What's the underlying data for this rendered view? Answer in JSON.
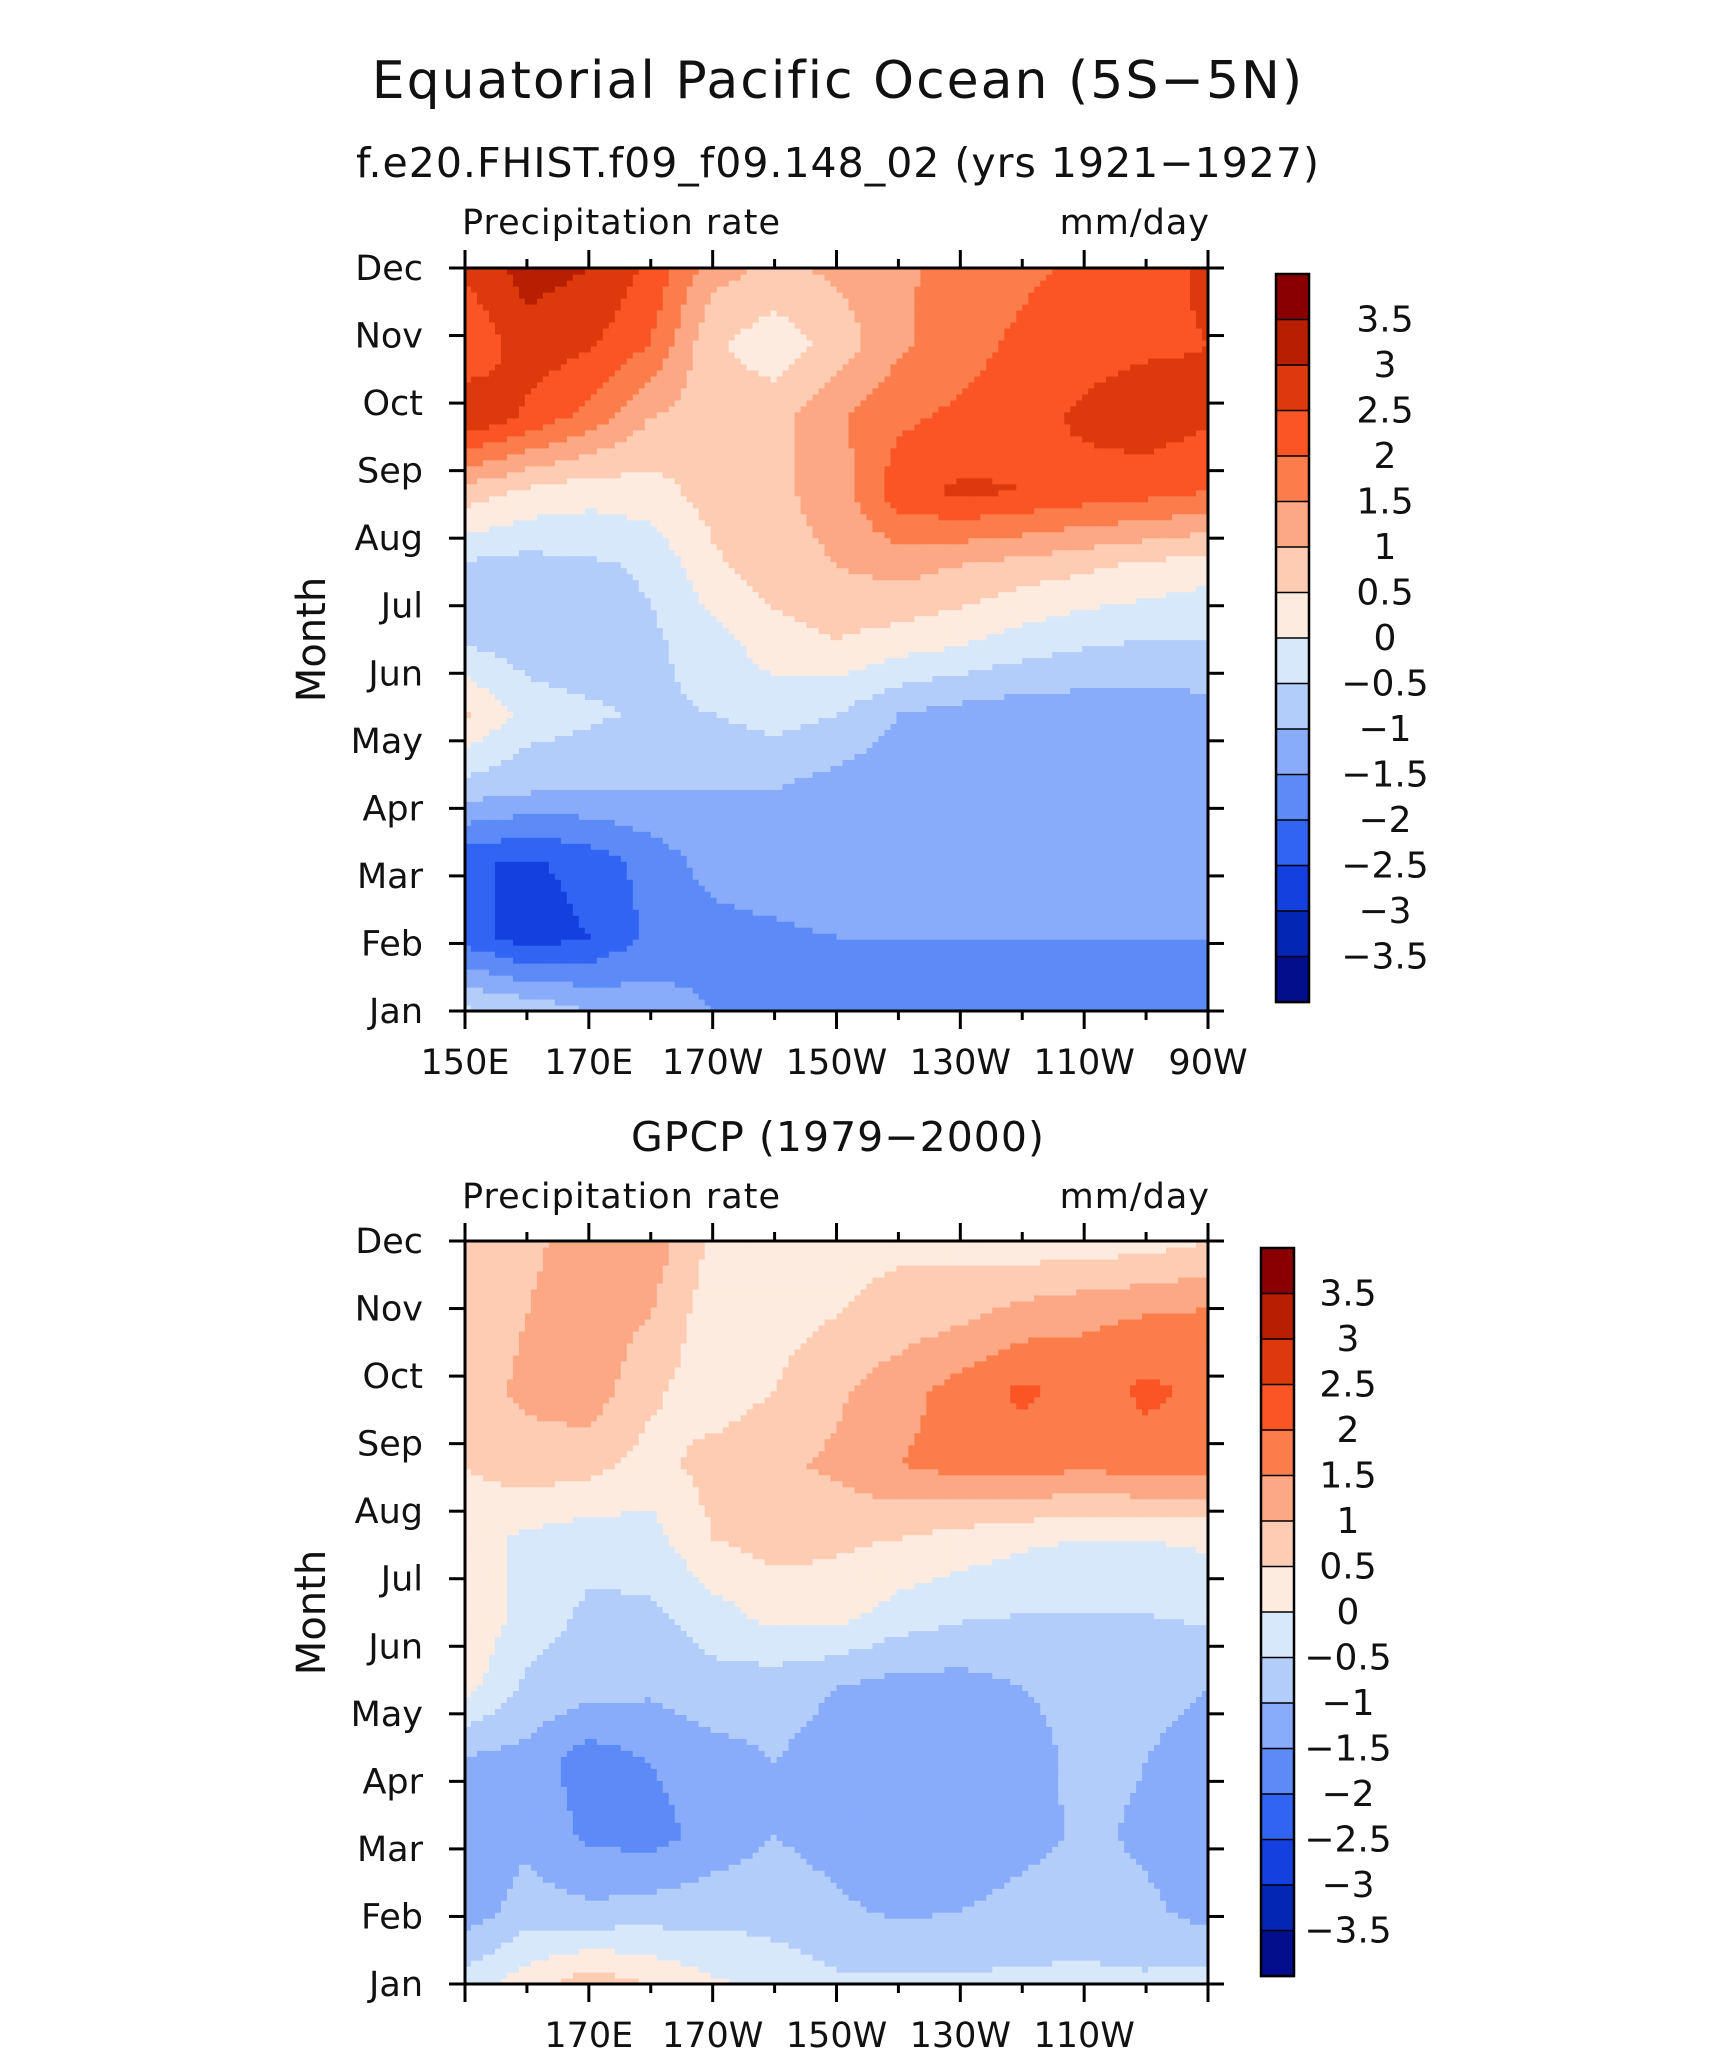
{
  "figure": {
    "title": "Equatorial Pacific Ocean (5S−5N)"
  },
  "chart_data": [
    {
      "type": "heatmap",
      "title": "f.e20.FHIST.f09_f09.148_02 (yrs 1921−1927)",
      "left_string": "Precipitation rate",
      "right_string": "mm/day",
      "ylabel": "Month",
      "xlabel": "",
      "x_ticks": [
        "150E",
        "170E",
        "170W",
        "150W",
        "130W",
        "110W",
        "90W"
      ],
      "y_ticks": [
        "Jan",
        "Feb",
        "Mar",
        "Apr",
        "May",
        "Jun",
        "Jul",
        "Aug",
        "Sep",
        "Oct",
        "Nov",
        "Dec"
      ],
      "xlim": [
        150,
        270
      ],
      "ylim": [
        "Jan",
        "Dec"
      ],
      "colorbar": {
        "labels": [
          "3.5",
          "3",
          "2.5",
          "2",
          "1.5",
          "1",
          "0.5",
          "0",
          "−0.5",
          "−1",
          "−1.5",
          "−2",
          "−2.5",
          "−3",
          "−3.5"
        ],
        "colors": [
          "#8a0000",
          "#b71e02",
          "#dc3a0d",
          "#fb5525",
          "#fb7d4b",
          "#fca884",
          "#fdccb3",
          "#fdebdf",
          "#d8e8fb",
          "#b3cdfa",
          "#88acfa",
          "#5c8bf8",
          "#3264f4",
          "#1540e0",
          "#0426b4",
          "#030e8c"
        ]
      },
      "grid": [
        [
          -0.4,
          -0.6,
          -1,
          -1.2,
          -1.5,
          -1.5,
          -1.6,
          -1.6,
          -1.6,
          -1.6,
          -1.6,
          -1.6,
          -1.5
        ],
        [
          -2.2,
          -2.8,
          -2.5,
          -1.9,
          -1.7,
          -1.6,
          -1.5,
          -1.5,
          -1.5,
          -1.5,
          -1.5,
          -1.5,
          -1.5
        ],
        [
          -2.4,
          -2.6,
          -2.3,
          -1.8,
          -1.3,
          -1.2,
          -1.1,
          -1.1,
          -1.1,
          -1.1,
          -1.1,
          -1.1,
          -1.1
        ],
        [
          -0.7,
          -0.9,
          -1.0,
          -1.0,
          -1.0,
          -1.0,
          -1.2,
          -1.4,
          -1.5,
          -1.5,
          -1.5,
          -1.4,
          -1.4
        ],
        [
          0.6,
          -0.2,
          -0.4,
          -0.6,
          -0.5,
          -0.3,
          -0.5,
          -1.0,
          -1.2,
          -1.3,
          -1.3,
          -1.3,
          -1.2
        ],
        [
          -0.6,
          -0.8,
          -0.9,
          -0.6,
          -0.2,
          0.3,
          0.5,
          0.3,
          0.1,
          -0.2,
          -0.4,
          -0.5,
          -0.5
        ],
        [
          -0.6,
          -0.7,
          -0.6,
          -0.4,
          0.4,
          0.8,
          1.0,
          1.2,
          1.0,
          0.8,
          0.6,
          0.4,
          0.2
        ],
        [
          0.8,
          0.4,
          0.2,
          0.3,
          0.7,
          0.9,
          1.2,
          2.3,
          2.6,
          2.5,
          2.3,
          2.2,
          2.0
        ],
        [
          3.0,
          2.4,
          1.8,
          1.0,
          0.7,
          0.8,
          1.4,
          1.9,
          2.1,
          2.3,
          2.6,
          2.8,
          2.6
        ],
        [
          2.0,
          2.8,
          2.6,
          2.0,
          0.6,
          0.2,
          0.7,
          1.4,
          1.8,
          2.1,
          2.3,
          2.4,
          2.5
        ],
        [
          2.6,
          3.2,
          3.0,
          2.4,
          1.2,
          0.9,
          1.1,
          1.4,
          1.7,
          1.9,
          2.1,
          2.3,
          2.6
        ]
      ]
    },
    {
      "type": "heatmap",
      "title": "GPCP (1979−2000)",
      "left_string": "Precipitation rate",
      "right_string": "mm/day",
      "ylabel": "Month",
      "xlabel": "",
      "x_ticks": [
        "170E",
        "170W",
        "150W",
        "130W",
        "110W"
      ],
      "y_ticks": [
        "Jan",
        "Feb",
        "Mar",
        "Apr",
        "May",
        "Jun",
        "Jul",
        "Aug",
        "Sep",
        "Oct",
        "Nov",
        "Dec"
      ],
      "xlim": [
        150,
        270
      ],
      "ylim": [
        "Jan",
        "Dec"
      ],
      "colorbar": {
        "labels": [
          "3.5",
          "3",
          "2.5",
          "2",
          "1.5",
          "1",
          "0.5",
          "0",
          "−0.5",
          "−1",
          "−1.5",
          "−2",
          "−2.5",
          "−3",
          "−3.5"
        ],
        "colors": [
          "#8a0000",
          "#b71e02",
          "#dc3a0d",
          "#fb5525",
          "#fb7d4b",
          "#fca884",
          "#fdccb3",
          "#fdebdf",
          "#d8e8fb",
          "#b3cdfa",
          "#88acfa",
          "#5c8bf8",
          "#3264f4",
          "#1540e0",
          "#0426b4",
          "#030e8c"
        ]
      },
      "grid": [
        [
          -0.3,
          0.3,
          0.8,
          0.5,
          0.1,
          -0.2,
          -0.4,
          -0.4,
          -0.4,
          -0.4,
          -0.4,
          -0.4,
          -0.3
        ],
        [
          -1.3,
          -0.8,
          -0.9,
          -0.8,
          -0.7,
          -0.7,
          -0.9,
          -1.1,
          -1.0,
          -0.8,
          -0.7,
          -0.9,
          -1.2
        ],
        [
          -1.2,
          -1.1,
          -1.6,
          -1.7,
          -1.3,
          -1.0,
          -1.2,
          -1.5,
          -1.5,
          -1.2,
          -0.9,
          -1.1,
          -1.3
        ],
        [
          -1.1,
          -1.2,
          -1.8,
          -1.5,
          -1.2,
          -1.0,
          -1.2,
          -1.5,
          -1.5,
          -1.3,
          -0.8,
          -1.0,
          -1.3
        ],
        [
          0.2,
          -0.6,
          -0.8,
          -0.9,
          -0.7,
          -0.8,
          -1.0,
          -1.2,
          -1.2,
          -1.0,
          -0.8,
          -0.8,
          -1.0
        ],
        [
          0.5,
          -0.2,
          -0.6,
          -0.6,
          -0.2,
          0.2,
          0.2,
          -0.2,
          -0.4,
          -0.5,
          -0.5,
          -0.5,
          -0.4
        ],
        [
          0.2,
          -0.1,
          -0.3,
          -0.2,
          0.5,
          0.7,
          0.6,
          0.5,
          0.3,
          0.1,
          0.0,
          0.0,
          0.1
        ],
        [
          0.5,
          0.8,
          0.7,
          0.3,
          0.7,
          0.9,
          1.1,
          1.5,
          1.7,
          1.8,
          1.6,
          1.8,
          1.7
        ],
        [
          0.8,
          1.1,
          1.3,
          0.6,
          0.2,
          0.5,
          0.9,
          1.3,
          1.7,
          2.1,
          1.8,
          2.1,
          1.9
        ],
        [
          0.7,
          1.0,
          1.3,
          1.0,
          0.2,
          0.3,
          0.5,
          0.7,
          0.9,
          1.2,
          1.4,
          1.5,
          1.6
        ],
        [
          0.6,
          0.9,
          1.2,
          1.3,
          0.4,
          0.2,
          0.3,
          0.4,
          0.3,
          0.2,
          0.2,
          0.3,
          0.5
        ]
      ]
    }
  ]
}
